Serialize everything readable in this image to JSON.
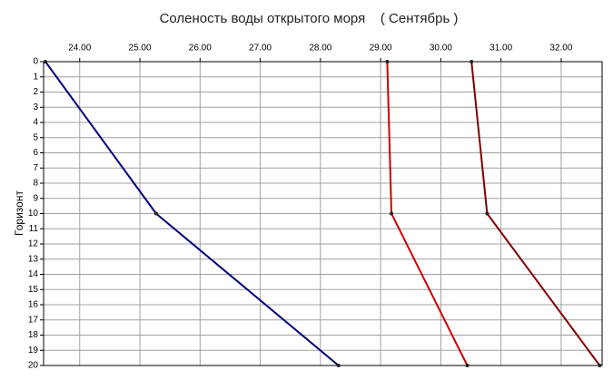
{
  "chart_data": {
    "type": "line",
    "title": "Соленость воды открытого моря    ( Сентябрь )",
    "y_label": "Горизонт",
    "y": [
      0,
      10,
      20
    ],
    "series": [
      {
        "color": "#000080",
        "values": [
          23.43,
          25.27,
          28.3
        ]
      },
      {
        "color": "#cc0000",
        "values": [
          29.11,
          29.18,
          30.44
        ]
      },
      {
        "color": "#800000",
        "values": [
          30.51,
          30.77,
          32.64
        ]
      }
    ],
    "xlim": [
      23.4,
      32.68
    ],
    "xticks": [
      {
        "value": 24,
        "label": "24.00"
      },
      {
        "value": 25,
        "label": "25.00"
      },
      {
        "value": 26,
        "label": "26.00"
      },
      {
        "value": 27,
        "label": "27.00"
      },
      {
        "value": 28,
        "label": "28.00"
      },
      {
        "value": 29,
        "label": "29.00"
      },
      {
        "value": 30,
        "label": "30.00"
      },
      {
        "value": 31,
        "label": "31.00"
      },
      {
        "value": 32,
        "label": "32.00"
      }
    ],
    "ylim": [
      0,
      20
    ],
    "yticks": [
      0,
      1,
      2,
      3,
      4,
      5,
      6,
      7,
      8,
      9,
      10,
      11,
      12,
      13,
      14,
      15,
      16,
      17,
      18,
      19,
      20
    ],
    "grid": true
  }
}
